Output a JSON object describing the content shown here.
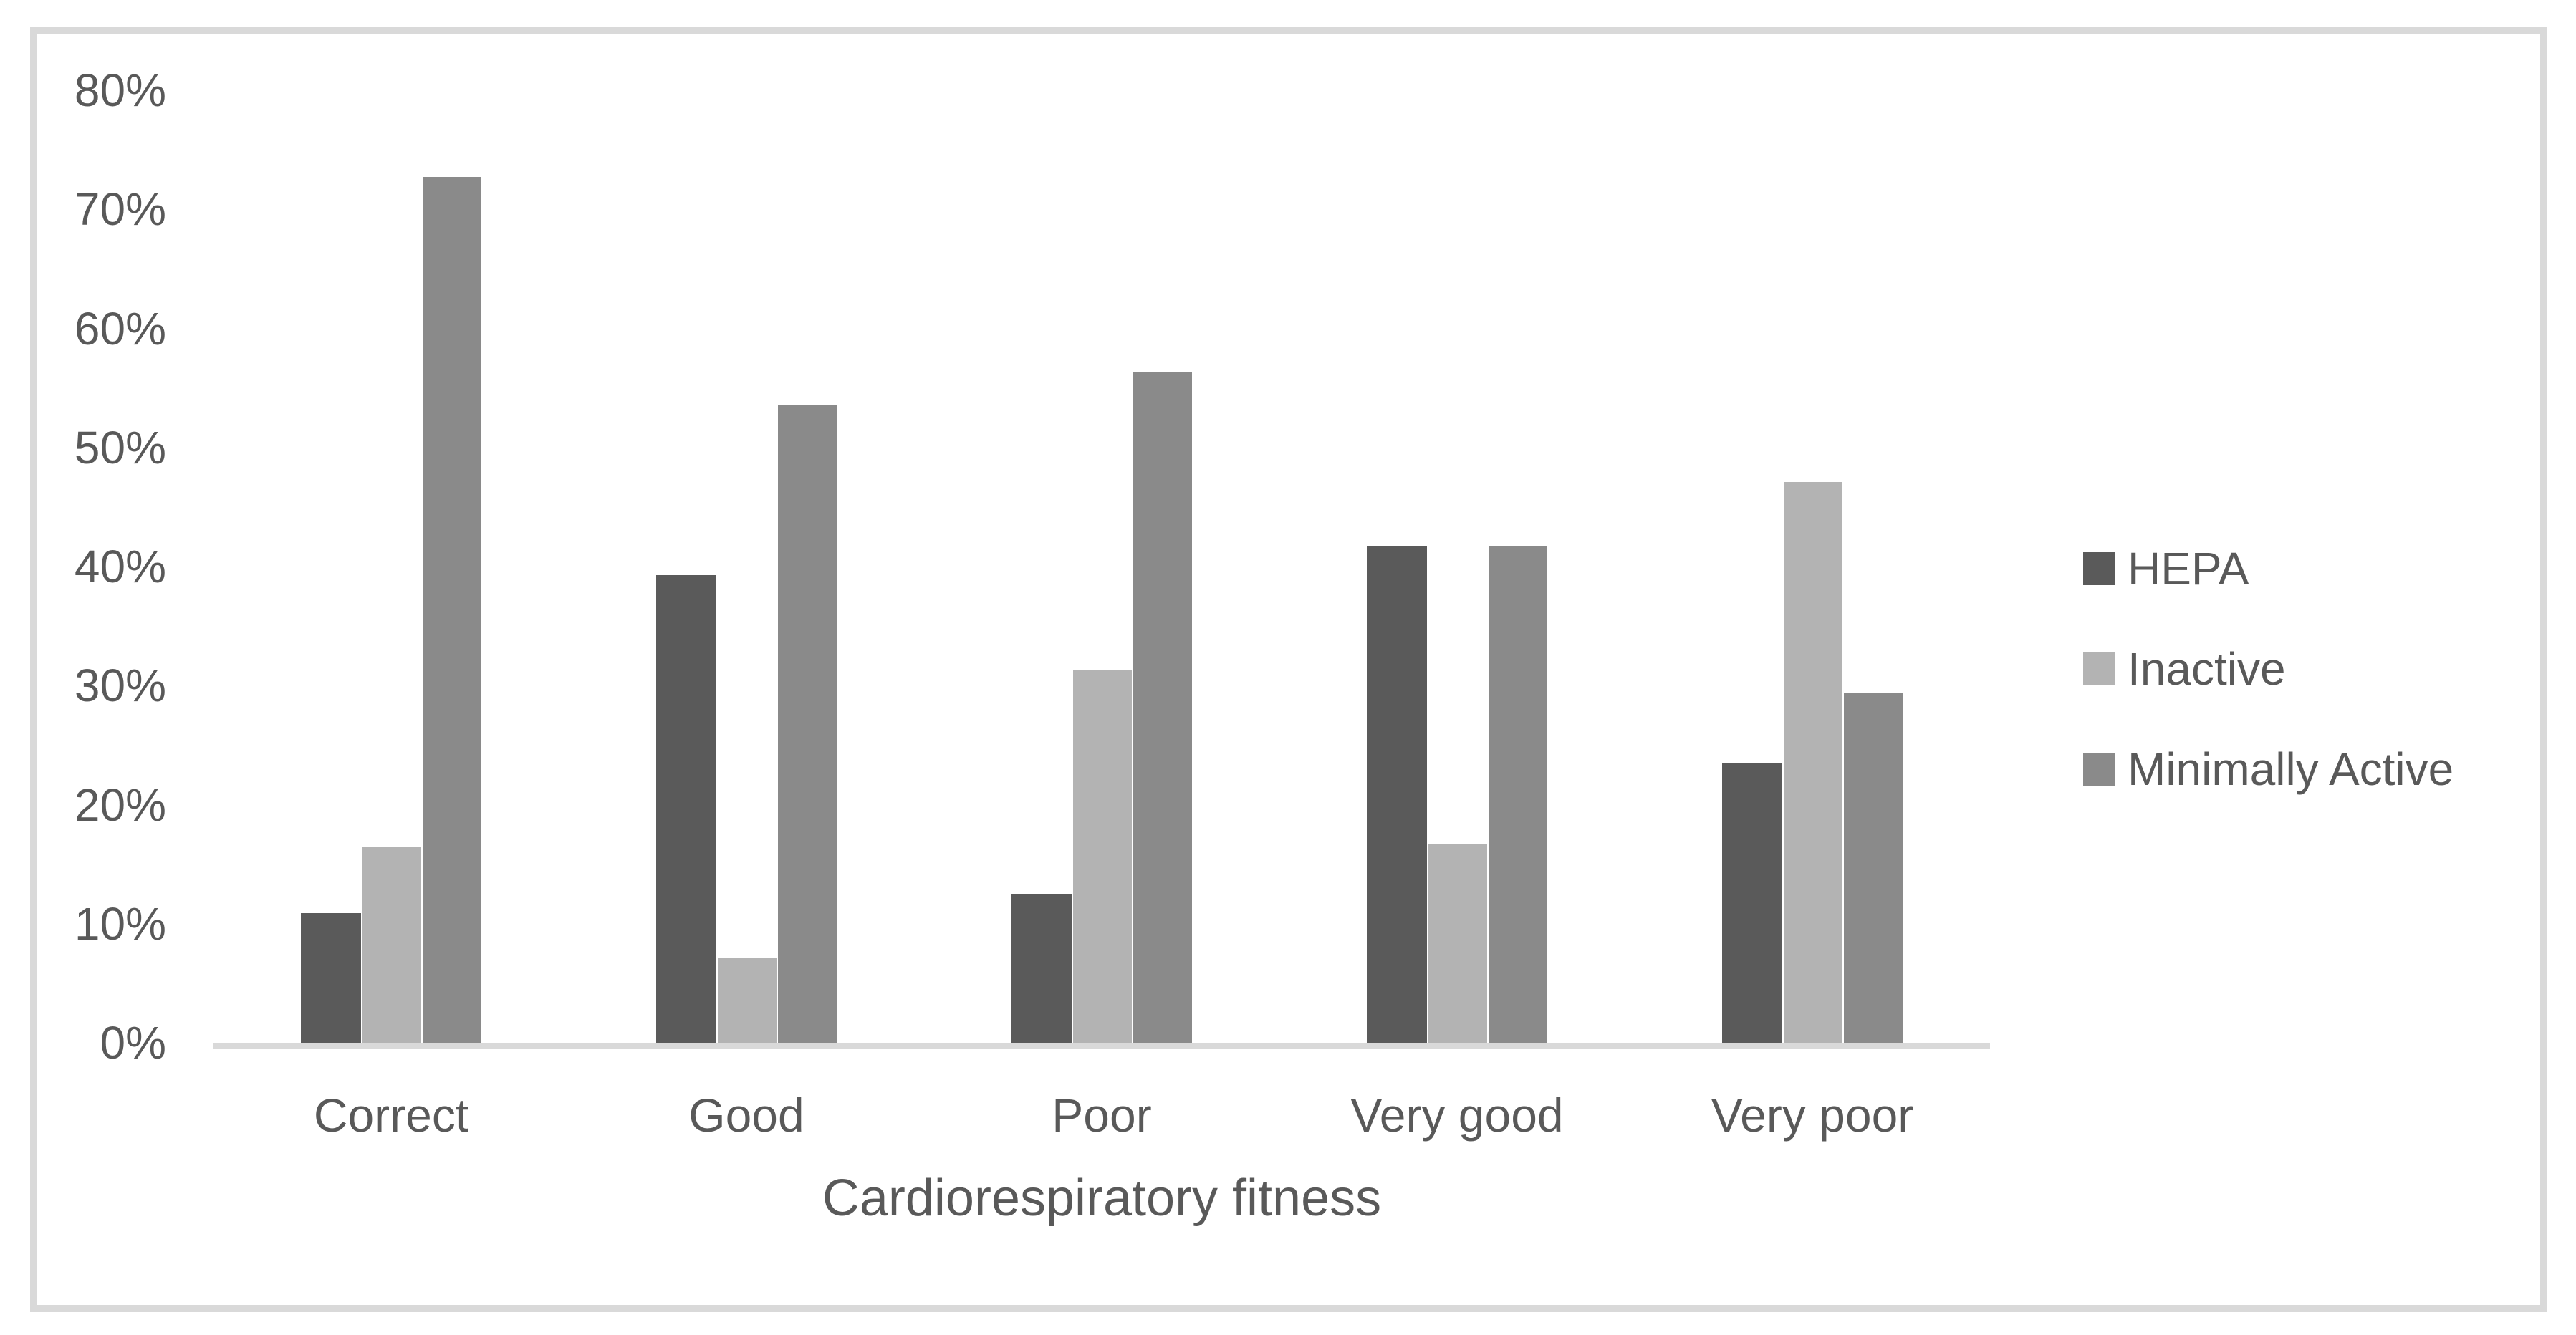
{
  "chart_data": {
    "type": "bar",
    "title": "",
    "xlabel": "Cardiorespiratory fitness",
    "ylabel": "",
    "categories": [
      "Correct",
      "Good",
      "Poor",
      "Very good",
      "Very poor"
    ],
    "series": [
      {
        "name": "HEPA",
        "color": "#5a5a5a",
        "values": [
          10.9,
          39.3,
          12.5,
          41.7,
          23.5
        ]
      },
      {
        "name": "Inactive",
        "color": "#b3b3b3",
        "values": [
          16.4,
          7.1,
          31.3,
          16.7,
          47.1
        ]
      },
      {
        "name": "Minimally Active",
        "color": "#8a8a8a",
        "values": [
          72.7,
          53.6,
          56.3,
          41.7,
          29.4
        ]
      }
    ],
    "y_axis": {
      "min": 0,
      "max": 80,
      "step": 10,
      "tick_labels": [
        "0%",
        "10%",
        "20%",
        "30%",
        "40%",
        "50%",
        "60%",
        "70%",
        "80%"
      ]
    },
    "legend_position": "right",
    "gridlines": false
  },
  "colors": {
    "background": "#ffffff",
    "frame_border": "#d9d9d9",
    "axis_line": "#d9d9d9",
    "text": "#595959",
    "bar_separator": "#ffffff"
  }
}
